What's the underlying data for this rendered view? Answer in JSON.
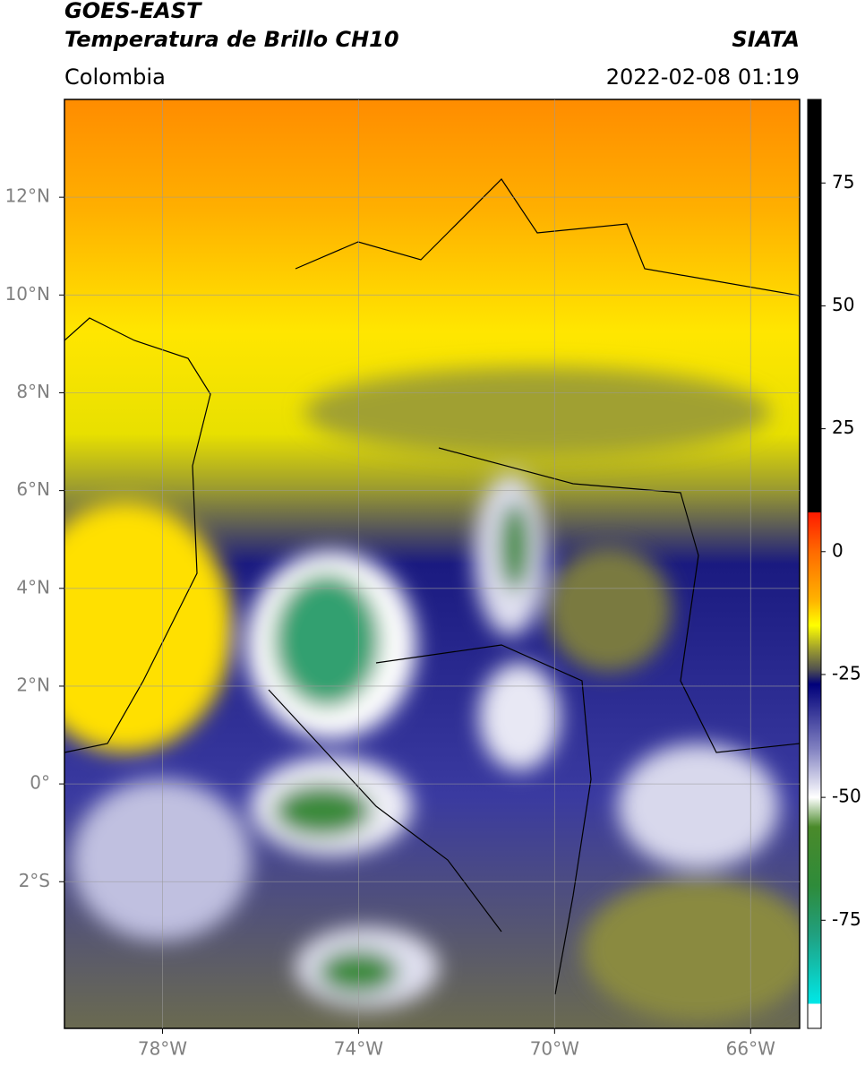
{
  "header": {
    "title": "GOES-EAST",
    "subtitle": "Temperatura de Brillo CH10",
    "region": "Colombia",
    "source": "SIATA",
    "timestamp": "2022-02-08 01:19"
  },
  "map": {
    "xlim": [
      -80,
      -65
    ],
    "ylim": [
      -5,
      14
    ],
    "xticks": [
      {
        "value": -78,
        "label": "78°W"
      },
      {
        "value": -74,
        "label": "74°W"
      },
      {
        "value": -70,
        "label": "70°W"
      },
      {
        "value": -66,
        "label": "66°W"
      }
    ],
    "yticks": [
      {
        "value": 12,
        "label": "12°N"
      },
      {
        "value": 10,
        "label": "10°N"
      },
      {
        "value": 8,
        "label": "8°N"
      },
      {
        "value": 6,
        "label": "6°N"
      },
      {
        "value": 4,
        "label": "4°N"
      },
      {
        "value": 2,
        "label": "2°N"
      },
      {
        "value": 0,
        "label": "0°"
      },
      {
        "value": -2,
        "label": "2°S"
      }
    ],
    "grid": true
  },
  "colorbar": {
    "lim": [
      -97,
      92
    ],
    "ticks": [
      75,
      50,
      25,
      0,
      -25,
      -50,
      -75
    ],
    "stops": [
      {
        "value": 92,
        "color": "#000000"
      },
      {
        "value": 8,
        "color": "#000000"
      },
      {
        "value": 8,
        "color": "#ff1a00"
      },
      {
        "value": 0,
        "color": "#ff6a00"
      },
      {
        "value": -10,
        "color": "#ffb400"
      },
      {
        "value": -15,
        "color": "#ffff00"
      },
      {
        "value": -20,
        "color": "#9a9a30"
      },
      {
        "value": -24,
        "color": "#505050"
      },
      {
        "value": -27,
        "color": "#00007a"
      },
      {
        "value": -40,
        "color": "#8080c0"
      },
      {
        "value": -50,
        "color": "#ffffff"
      },
      {
        "value": -56,
        "color": "#4a8a2a"
      },
      {
        "value": -68,
        "color": "#2e8b3a"
      },
      {
        "value": -78,
        "color": "#20a080"
      },
      {
        "value": -92,
        "color": "#00e8e8"
      },
      {
        "value": -92,
        "color": "#ffffff"
      },
      {
        "value": -97,
        "color": "#ffffff"
      }
    ]
  }
}
